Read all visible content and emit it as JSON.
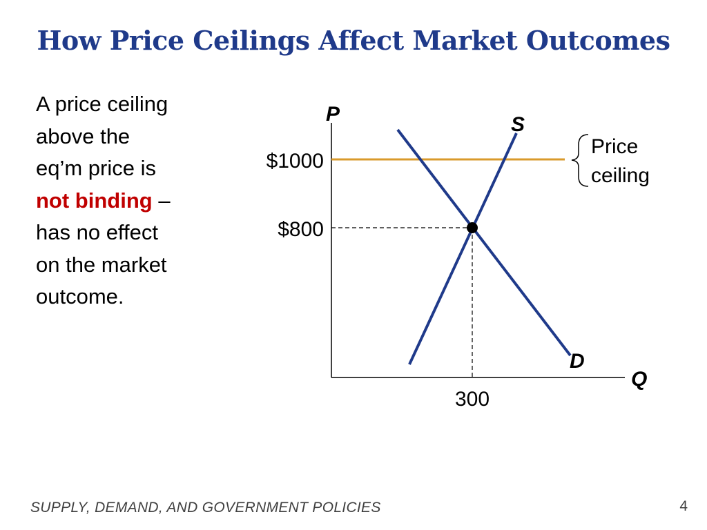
{
  "slide": {
    "title": "How Price Ceilings Affect Market Outcomes",
    "body": {
      "line1": "A price ceiling",
      "line2": "above the",
      "line3": "eq’m price is",
      "line4_highlight": "not binding",
      "line4_rest": " –",
      "line5": "has no effect",
      "line6": "on the market",
      "line7": "outcome."
    },
    "footer": "SUPPLY, DEMAND, AND GOVERNMENT POLICIES",
    "page_number": "4"
  },
  "diagram": {
    "y_axis_label": "P",
    "x_axis_label": "Q",
    "supply_label": "S",
    "demand_label": "D",
    "price_ceiling_label_1": "Price",
    "price_ceiling_label_2": "ceiling",
    "price_ceiling_value": "$1000",
    "equilibrium_price": "$800",
    "equilibrium_quantity": "300",
    "colors": {
      "curves": "#1f3a8a",
      "price_ceiling": "#d99a2b",
      "title": "#1f3a8a",
      "highlight": "#c00000"
    }
  }
}
